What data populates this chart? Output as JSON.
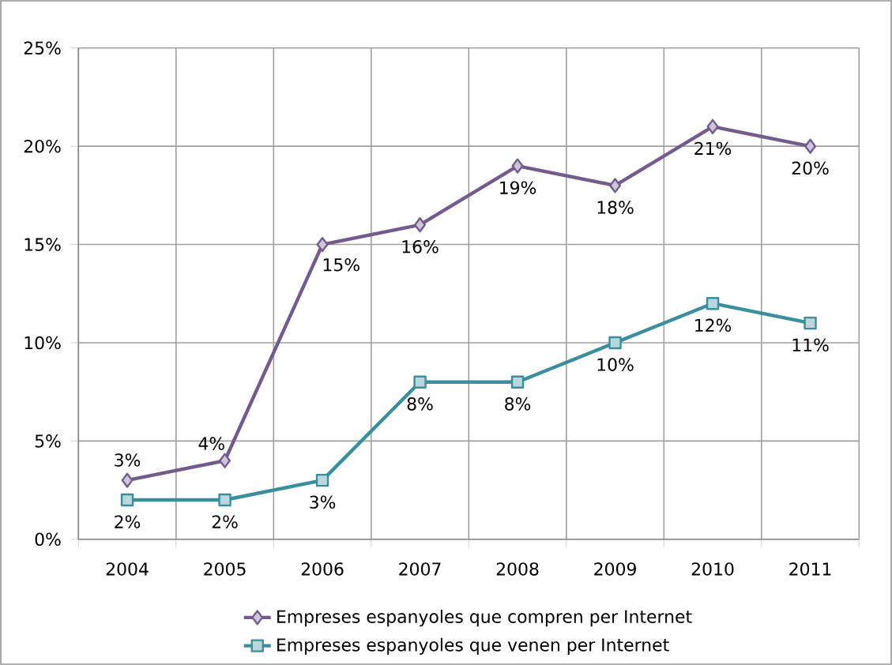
{
  "chart_data": {
    "type": "line",
    "categories": [
      "2004",
      "2005",
      "2006",
      "2007",
      "2008",
      "2009",
      "2010",
      "2011"
    ],
    "series": [
      {
        "name": "Empreses espanyoles que compren per Internet",
        "color": "#735b8f",
        "marker": "diamond",
        "values": [
          3,
          4,
          15,
          16,
          19,
          18,
          21,
          20
        ],
        "value_labels": [
          "3%",
          "4%",
          "15%",
          "16%",
          "19%",
          "18%",
          "21%",
          "20%"
        ]
      },
      {
        "name": "Empreses espanyoles que venen per Internet",
        "color": "#3a8e9e",
        "marker": "square",
        "values": [
          2,
          2,
          3,
          8,
          8,
          10,
          12,
          11
        ],
        "value_labels": [
          "2%",
          "2%",
          "3%",
          "8%",
          "8%",
          "10%",
          "12%",
          "11%"
        ]
      }
    ],
    "ylim": [
      0,
      25
    ],
    "yticks": [
      {
        "value": 0,
        "label": "0%"
      },
      {
        "value": 5,
        "label": "5%"
      },
      {
        "value": 10,
        "label": "10%"
      },
      {
        "value": 15,
        "label": "15%"
      },
      {
        "value": 20,
        "label": "20%"
      },
      {
        "value": 25,
        "label": "25%"
      }
    ],
    "grid": true,
    "legend": "bottom"
  }
}
